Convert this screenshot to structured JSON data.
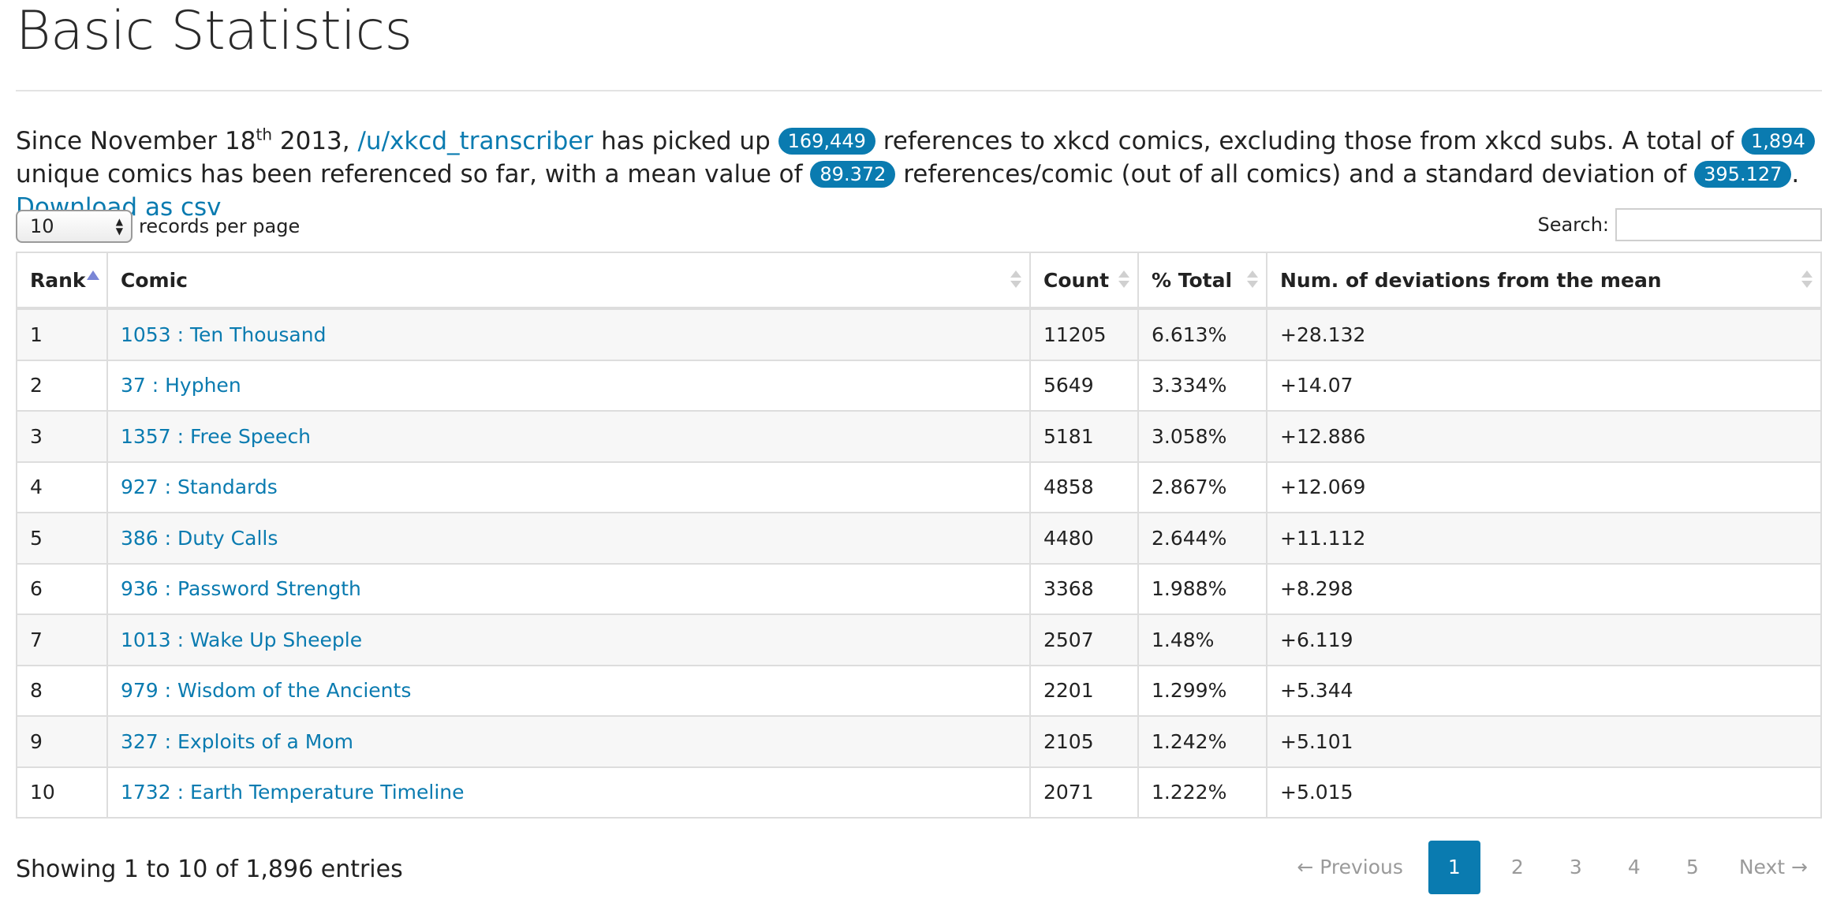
{
  "page": {
    "title": "Basic Statistics"
  },
  "intro": {
    "p1": "Since November 18",
    "sup": "th",
    "p2": " 2013, ",
    "user_link": "/u/xkcd_transcriber",
    "p3": " has picked up ",
    "total_refs": "169,449",
    "p4": " references to xkcd comics, excluding those from xkcd subs. A total of ",
    "unique_comics": "1,894",
    "p5": " unique comics has been referenced so far, with a mean value of ",
    "mean": "89.372",
    "p6": " references/comic (out of all comics) and a standard deviation of ",
    "std_dev": "395.127",
    "p7": ". ",
    "download_link": "Download as csv"
  },
  "controls": {
    "page_length": "10",
    "records_label": "records per page",
    "search_label": "Search:",
    "search_value": ""
  },
  "table": {
    "columns": [
      "Rank",
      "Comic",
      "Count",
      "% Total",
      "Num. of deviations from the mean"
    ],
    "rows": [
      {
        "rank": "1",
        "comic": "1053 : Ten Thousand",
        "count": "11205",
        "pct": "6.613%",
        "dev": "+28.132"
      },
      {
        "rank": "2",
        "comic": "37 : Hyphen",
        "count": "5649",
        "pct": "3.334%",
        "dev": "+14.07"
      },
      {
        "rank": "3",
        "comic": "1357 : Free Speech",
        "count": "5181",
        "pct": "3.058%",
        "dev": "+12.886"
      },
      {
        "rank": "4",
        "comic": "927 : Standards",
        "count": "4858",
        "pct": "2.867%",
        "dev": "+12.069"
      },
      {
        "rank": "5",
        "comic": "386 : Duty Calls",
        "count": "4480",
        "pct": "2.644%",
        "dev": "+11.112"
      },
      {
        "rank": "6",
        "comic": "936 : Password Strength",
        "count": "3368",
        "pct": "1.988%",
        "dev": "+8.298"
      },
      {
        "rank": "7",
        "comic": "1013 : Wake Up Sheeple",
        "count": "2507",
        "pct": "1.48%",
        "dev": "+6.119"
      },
      {
        "rank": "8",
        "comic": "979 : Wisdom of the Ancients",
        "count": "2201",
        "pct": "1.299%",
        "dev": "+5.344"
      },
      {
        "rank": "9",
        "comic": "327 : Exploits of a Mom",
        "count": "2105",
        "pct": "1.242%",
        "dev": "+5.101"
      },
      {
        "rank": "10",
        "comic": "1732 : Earth Temperature Timeline",
        "count": "2071",
        "pct": "1.222%",
        "dev": "+5.015"
      }
    ]
  },
  "footer": {
    "info": "Showing 1 to 10 of 1,896 entries",
    "prev": "← Previous",
    "pages": [
      "1",
      "2",
      "3",
      "4",
      "5"
    ],
    "current_page": "1",
    "next": "Next →"
  },
  "colors": {
    "accent": "#0a7bb0",
    "sort_active": "#7a86d6"
  }
}
